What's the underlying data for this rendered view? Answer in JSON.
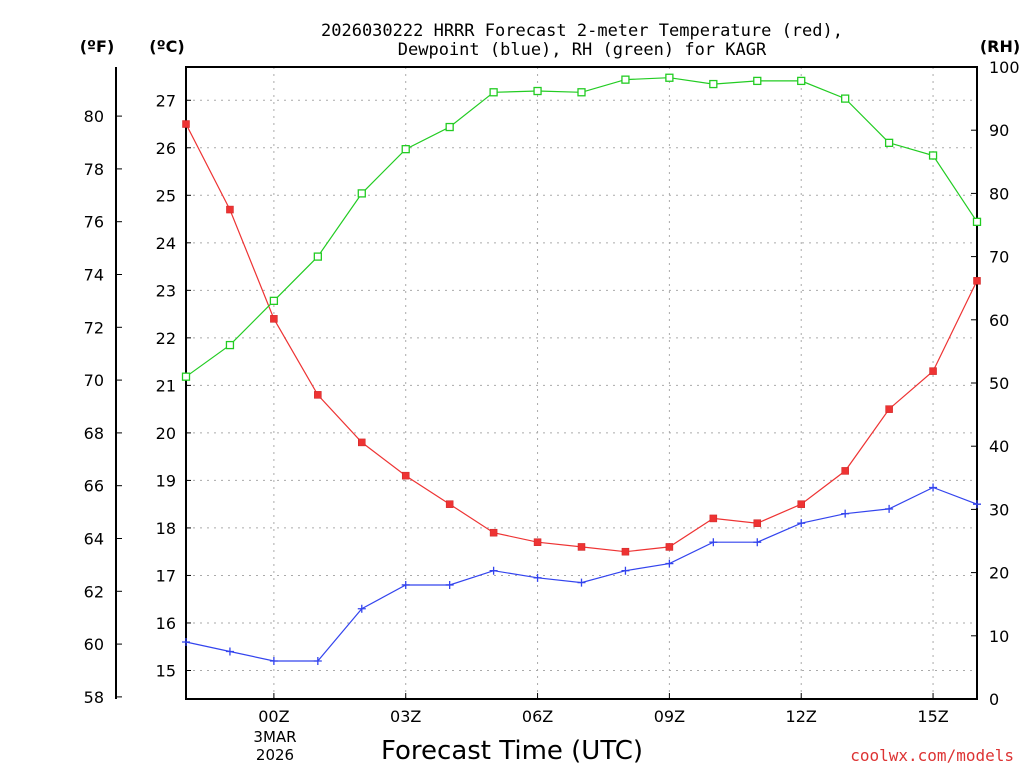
{
  "chart_data": {
    "type": "line",
    "title_line1": "2026030222 HRRR Forecast 2-meter Temperature (red),",
    "title_line2": "Dewpoint (blue), RH (green) for KAGR",
    "xlabel": "Forecast Time (UTC)",
    "watermark": "coolwx.com/models",
    "unit_f": "(ºF)",
    "unit_c": "(ºC)",
    "unit_rh": "(RH)",
    "date_label_line1": "3MAR",
    "date_label_line2": "2026",
    "x_hours": [
      -2,
      -1,
      0,
      1,
      2,
      3,
      4,
      5,
      6,
      7,
      8,
      9,
      10,
      11,
      12,
      13,
      14,
      15,
      16
    ],
    "xlim": [
      -2,
      16
    ],
    "x_ticks": [
      {
        "hour": 0,
        "label": "00Z"
      },
      {
        "hour": 3,
        "label": "03Z"
      },
      {
        "hour": 6,
        "label": "06Z"
      },
      {
        "hour": 9,
        "label": "09Z"
      },
      {
        "hour": 12,
        "label": "12Z"
      },
      {
        "hour": 15,
        "label": "15Z"
      }
    ],
    "c_lim": [
      14.4,
      27.7
    ],
    "c_ticks": [
      15,
      16,
      17,
      18,
      19,
      20,
      21,
      22,
      23,
      24,
      25,
      26,
      27
    ],
    "f_ticks": [
      58,
      60,
      62,
      64,
      66,
      68,
      70,
      72,
      74,
      76,
      78,
      80
    ],
    "rh_lim": [
      0,
      100
    ],
    "rh_ticks": [
      0,
      10,
      20,
      30,
      40,
      50,
      60,
      70,
      80,
      90,
      100
    ],
    "colors": {
      "temperature": "#ee3333",
      "dewpoint": "#3344ee",
      "rh": "#22cc22",
      "grid": "#aaaaaa",
      "watermark": "#dd3333"
    },
    "series": [
      {
        "name": "Temperature",
        "axis": "celsius",
        "marker": "filled-square",
        "values": [
          26.5,
          24.7,
          22.4,
          20.8,
          19.8,
          19.1,
          18.5,
          17.9,
          17.7,
          17.6,
          17.5,
          17.6,
          18.2,
          18.1,
          18.5,
          19.2,
          20.5,
          21.3,
          23.2
        ]
      },
      {
        "name": "Dewpoint",
        "axis": "celsius",
        "marker": "plus",
        "values": [
          15.6,
          15.4,
          15.2,
          15.2,
          16.3,
          16.8,
          16.8,
          17.1,
          16.95,
          16.85,
          17.1,
          17.25,
          17.7,
          17.7,
          18.1,
          18.3,
          18.4,
          18.85,
          18.5
        ]
      },
      {
        "name": "RH",
        "axis": "rh",
        "marker": "open-square",
        "values": [
          51,
          56,
          63,
          70,
          80,
          87,
          90.5,
          96,
          96.2,
          96,
          98,
          98.3,
          97.3,
          97.8,
          97.8,
          95,
          88,
          86,
          75.5
        ]
      }
    ]
  }
}
